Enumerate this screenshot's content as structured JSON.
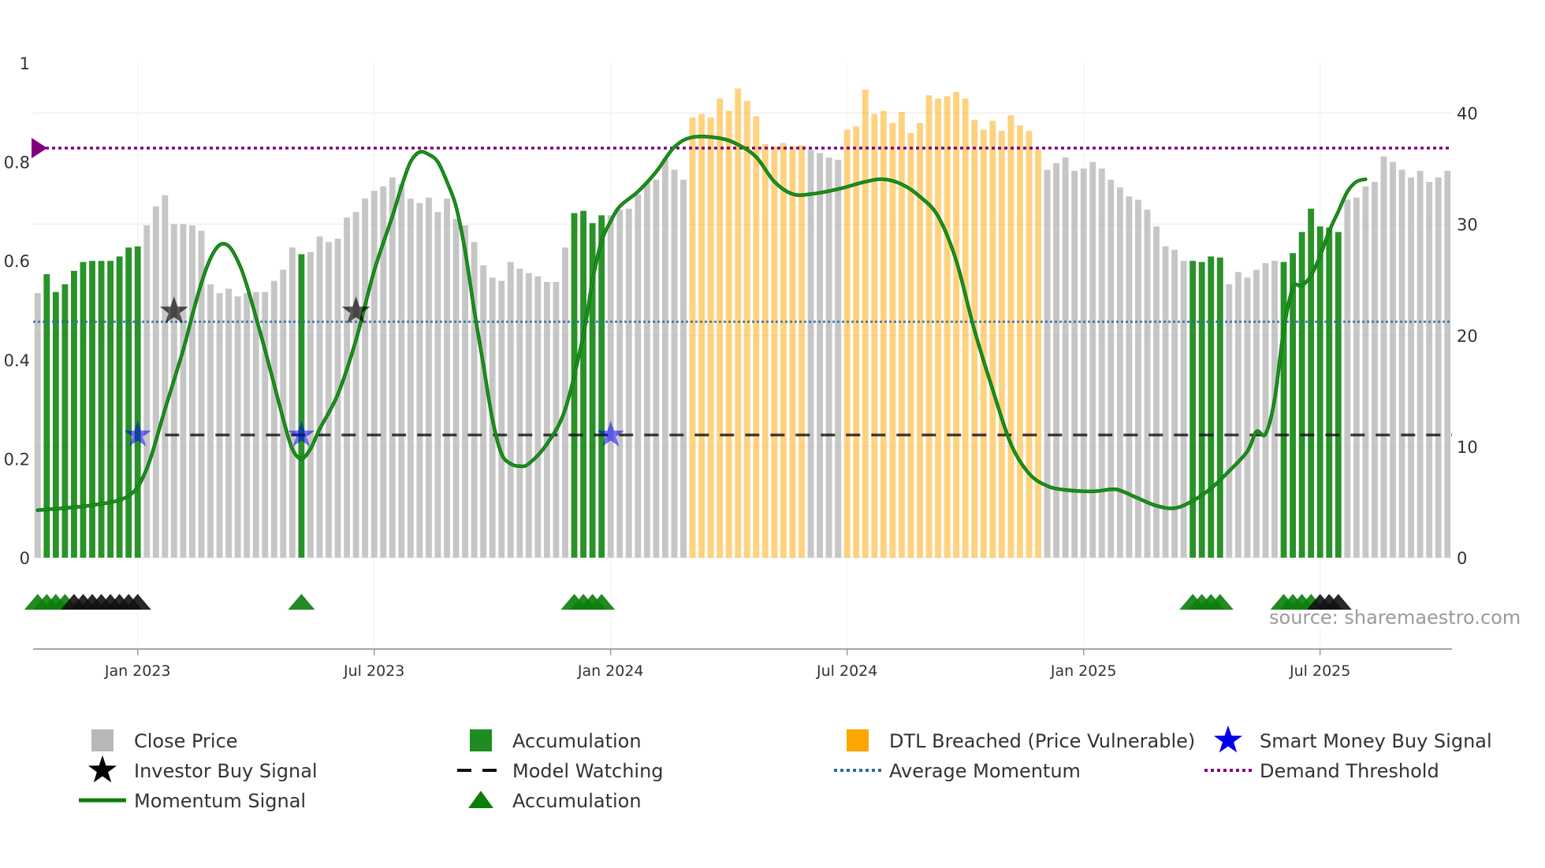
{
  "chart_data": {
    "type": "bar",
    "title": "",
    "source": "source: sharemaestro.com",
    "x_ticks": [
      "Jan 2023",
      "Jul 2023",
      "Jan 2024",
      "Jul 2024",
      "Jan 2025",
      "Jul 2025"
    ],
    "y_left": {
      "ticks": [
        "0",
        "0.2",
        "0.4",
        "0.6",
        "0.8",
        "1"
      ],
      "ylim": [
        0,
        1
      ]
    },
    "y_right": {
      "ticks": [
        "0",
        "10",
        "20",
        "30",
        "40"
      ],
      "ylim": [
        0,
        44.5
      ]
    },
    "bar_states": {
      "g": "Accumulation",
      "y": "DTL Breached (Price Vulnerable)",
      "x": "Close Price"
    },
    "close_price_weekly": [
      [
        23.8,
        "x"
      ],
      [
        25.5,
        "g"
      ],
      [
        23.9,
        "g"
      ],
      [
        24.6,
        "g"
      ],
      [
        25.8,
        "g"
      ],
      [
        26.6,
        "g"
      ],
      [
        26.7,
        "g"
      ],
      [
        26.7,
        "g"
      ],
      [
        26.7,
        "g"
      ],
      [
        27.1,
        "g"
      ],
      [
        27.9,
        "g"
      ],
      [
        28.0,
        "g"
      ],
      [
        29.9,
        "x"
      ],
      [
        31.6,
        "x"
      ],
      [
        32.6,
        "x"
      ],
      [
        30.0,
        "x"
      ],
      [
        30.0,
        "x"
      ],
      [
        29.9,
        "x"
      ],
      [
        29.4,
        "x"
      ],
      [
        24.6,
        "x"
      ],
      [
        23.8,
        "x"
      ],
      [
        24.2,
        "x"
      ],
      [
        23.5,
        "x"
      ],
      [
        23.8,
        "x"
      ],
      [
        23.9,
        "x"
      ],
      [
        23.9,
        "x"
      ],
      [
        24.9,
        "x"
      ],
      [
        25.9,
        "x"
      ],
      [
        27.9,
        "x"
      ],
      [
        27.3,
        "g"
      ],
      [
        27.5,
        "x"
      ],
      [
        28.9,
        "x"
      ],
      [
        28.4,
        "x"
      ],
      [
        28.7,
        "x"
      ],
      [
        30.6,
        "x"
      ],
      [
        31.1,
        "x"
      ],
      [
        32.3,
        "x"
      ],
      [
        33.0,
        "x"
      ],
      [
        33.4,
        "x"
      ],
      [
        34.2,
        "x"
      ],
      [
        33.6,
        "x"
      ],
      [
        32.3,
        "x"
      ],
      [
        31.9,
        "x"
      ],
      [
        32.4,
        "x"
      ],
      [
        31.1,
        "x"
      ],
      [
        32.3,
        "x"
      ],
      [
        30.5,
        "x"
      ],
      [
        29.9,
        "x"
      ],
      [
        28.4,
        "x"
      ],
      [
        26.3,
        "x"
      ],
      [
        25.2,
        "x"
      ],
      [
        24.9,
        "x"
      ],
      [
        26.6,
        "x"
      ],
      [
        26.0,
        "x"
      ],
      [
        25.6,
        "x"
      ],
      [
        25.3,
        "x"
      ],
      [
        24.8,
        "x"
      ],
      [
        24.8,
        "x"
      ],
      [
        27.9,
        "x"
      ],
      [
        31.0,
        "g"
      ],
      [
        31.2,
        "g"
      ],
      [
        30.1,
        "g"
      ],
      [
        30.8,
        "g"
      ],
      [
        30.8,
        "x"
      ],
      [
        31.3,
        "x"
      ],
      [
        31.4,
        "x"
      ],
      [
        32.7,
        "x"
      ],
      [
        33.8,
        "x"
      ],
      [
        34.0,
        "x"
      ],
      [
        35.9,
        "x"
      ],
      [
        34.9,
        "x"
      ],
      [
        34.0,
        "x"
      ],
      [
        39.6,
        "y"
      ],
      [
        39.9,
        "y"
      ],
      [
        39.6,
        "y"
      ],
      [
        41.3,
        "y"
      ],
      [
        40.2,
        "y"
      ],
      [
        42.2,
        "y"
      ],
      [
        41.1,
        "y"
      ],
      [
        39.7,
        "y"
      ],
      [
        37.2,
        "y"
      ],
      [
        37.0,
        "y"
      ],
      [
        37.3,
        "y"
      ],
      [
        37.0,
        "y"
      ],
      [
        37.1,
        "y"
      ],
      [
        36.7,
        "x"
      ],
      [
        36.4,
        "x"
      ],
      [
        36.0,
        "x"
      ],
      [
        35.8,
        "x"
      ],
      [
        38.5,
        "y"
      ],
      [
        38.8,
        "y"
      ],
      [
        42.1,
        "y"
      ],
      [
        39.9,
        "y"
      ],
      [
        40.2,
        "y"
      ],
      [
        39.1,
        "y"
      ],
      [
        40.1,
        "y"
      ],
      [
        38.2,
        "y"
      ],
      [
        39.1,
        "y"
      ],
      [
        41.6,
        "y"
      ],
      [
        41.3,
        "y"
      ],
      [
        41.5,
        "y"
      ],
      [
        41.9,
        "y"
      ],
      [
        41.3,
        "y"
      ],
      [
        39.4,
        "y"
      ],
      [
        38.5,
        "y"
      ],
      [
        39.3,
        "y"
      ],
      [
        38.4,
        "y"
      ],
      [
        39.8,
        "y"
      ],
      [
        38.9,
        "y"
      ],
      [
        38.4,
        "y"
      ],
      [
        36.7,
        "y"
      ],
      [
        34.9,
        "x"
      ],
      [
        35.5,
        "x"
      ],
      [
        36.0,
        "x"
      ],
      [
        34.8,
        "x"
      ],
      [
        35.0,
        "x"
      ],
      [
        35.6,
        "x"
      ],
      [
        35.0,
        "x"
      ],
      [
        34.0,
        "x"
      ],
      [
        33.3,
        "x"
      ],
      [
        32.5,
        "x"
      ],
      [
        32.2,
        "x"
      ],
      [
        31.3,
        "x"
      ],
      [
        29.8,
        "x"
      ],
      [
        28.0,
        "x"
      ],
      [
        27.7,
        "x"
      ],
      [
        26.7,
        "x"
      ],
      [
        26.7,
        "g"
      ],
      [
        26.6,
        "g"
      ],
      [
        27.1,
        "g"
      ],
      [
        27.0,
        "g"
      ],
      [
        24.6,
        "x"
      ],
      [
        25.7,
        "x"
      ],
      [
        25.2,
        "x"
      ],
      [
        25.9,
        "x"
      ],
      [
        26.5,
        "x"
      ],
      [
        26.7,
        "x"
      ],
      [
        26.6,
        "g"
      ],
      [
        27.4,
        "g"
      ],
      [
        29.3,
        "g"
      ],
      [
        31.4,
        "g"
      ],
      [
        29.8,
        "g"
      ],
      [
        29.7,
        "g"
      ],
      [
        29.3,
        "g"
      ],
      [
        32.2,
        "x"
      ],
      [
        32.4,
        "x"
      ],
      [
        33.4,
        "x"
      ],
      [
        33.8,
        "x"
      ],
      [
        36.1,
        "x"
      ],
      [
        35.6,
        "x"
      ],
      [
        34.9,
        "x"
      ],
      [
        34.2,
        "x"
      ],
      [
        34.8,
        "x"
      ],
      [
        33.8,
        "x"
      ],
      [
        34.2,
        "x"
      ],
      [
        34.8,
        "x"
      ]
    ],
    "momentum_signal": [
      [
        0,
        0.096
      ],
      [
        6,
        0.106
      ],
      [
        10,
        0.125
      ],
      [
        12,
        0.18
      ],
      [
        14,
        0.3
      ],
      [
        16,
        0.42
      ],
      [
        17,
        0.49
      ],
      [
        18,
        0.555
      ],
      [
        19,
        0.605
      ],
      [
        20,
        0.632
      ],
      [
        21,
        0.63
      ],
      [
        22,
        0.6
      ],
      [
        23,
        0.55
      ],
      [
        25,
        0.42
      ],
      [
        27,
        0.28
      ],
      [
        28,
        0.22
      ],
      [
        29,
        0.2
      ],
      [
        30,
        0.22
      ],
      [
        31,
        0.26
      ],
      [
        33,
        0.33
      ],
      [
        35,
        0.44
      ],
      [
        37,
        0.58
      ],
      [
        39,
        0.69
      ],
      [
        40,
        0.75
      ],
      [
        41,
        0.8
      ],
      [
        42,
        0.82
      ],
      [
        43,
        0.815
      ],
      [
        44,
        0.8
      ],
      [
        45,
        0.76
      ],
      [
        46,
        0.71
      ],
      [
        47,
        0.62
      ],
      [
        48,
        0.5
      ],
      [
        49,
        0.39
      ],
      [
        50,
        0.28
      ],
      [
        51,
        0.21
      ],
      [
        52,
        0.19
      ],
      [
        53,
        0.185
      ],
      [
        54,
        0.19
      ],
      [
        56,
        0.23
      ],
      [
        58,
        0.3
      ],
      [
        60,
        0.45
      ],
      [
        61,
        0.56
      ],
      [
        62,
        0.64
      ],
      [
        63,
        0.68
      ],
      [
        64,
        0.71
      ],
      [
        66,
        0.74
      ],
      [
        68,
        0.78
      ],
      [
        70,
        0.83
      ],
      [
        72,
        0.85
      ],
      [
        75,
        0.848
      ],
      [
        77,
        0.835
      ],
      [
        79,
        0.81
      ],
      [
        81,
        0.76
      ],
      [
        83,
        0.735
      ],
      [
        85,
        0.735
      ],
      [
        88,
        0.745
      ],
      [
        91,
        0.76
      ],
      [
        93,
        0.765
      ],
      [
        95,
        0.755
      ],
      [
        97,
        0.73
      ],
      [
        99,
        0.69
      ],
      [
        101,
        0.6
      ],
      [
        103,
        0.46
      ],
      [
        105,
        0.34
      ],
      [
        107,
        0.23
      ],
      [
        109,
        0.17
      ],
      [
        111,
        0.145
      ],
      [
        113,
        0.137
      ],
      [
        116,
        0.134
      ],
      [
        118,
        0.138
      ],
      [
        119,
        0.136
      ],
      [
        121,
        0.12
      ],
      [
        123,
        0.105
      ],
      [
        125,
        0.1
      ],
      [
        127,
        0.115
      ],
      [
        129,
        0.14
      ],
      [
        131,
        0.175
      ],
      [
        133,
        0.215
      ],
      [
        134,
        0.255
      ],
      [
        135,
        0.25
      ],
      [
        136,
        0.32
      ],
      [
        137,
        0.46
      ],
      [
        138,
        0.545
      ],
      [
        139,
        0.55
      ],
      [
        140,
        0.57
      ],
      [
        141,
        0.61
      ],
      [
        142,
        0.66
      ],
      [
        143,
        0.7
      ],
      [
        144,
        0.74
      ],
      [
        145,
        0.76
      ],
      [
        146,
        0.765
      ]
    ],
    "demand_threshold": 0.828,
    "average_momentum": 0.477,
    "model_watching": {
      "level": 0.248,
      "start_week": 14
    },
    "investor_buy_signals": [
      {
        "week": 15,
        "value": 0.498
      },
      {
        "week": 35,
        "value": 0.498
      }
    ],
    "smart_money_buy_signals": [
      {
        "week": 11,
        "value": 0.248
      },
      {
        "week": 29,
        "value": 0.248
      },
      {
        "week": 63,
        "value": 0.248
      }
    ],
    "accumulation_markers": [
      {
        "week": 0,
        "color": "green"
      },
      {
        "week": 1,
        "color": "green"
      },
      {
        "week": 2,
        "color": "green"
      },
      {
        "week": 3,
        "color": "green"
      },
      {
        "week": 4,
        "color": "black"
      },
      {
        "week": 5,
        "color": "black"
      },
      {
        "week": 6,
        "color": "black"
      },
      {
        "week": 7,
        "color": "black"
      },
      {
        "week": 8,
        "color": "black"
      },
      {
        "week": 9,
        "color": "black"
      },
      {
        "week": 10,
        "color": "black"
      },
      {
        "week": 11,
        "color": "black"
      },
      {
        "week": 29,
        "color": "green"
      },
      {
        "week": 59,
        "color": "green"
      },
      {
        "week": 60,
        "color": "green"
      },
      {
        "week": 61,
        "color": "green"
      },
      {
        "week": 62,
        "color": "green"
      },
      {
        "week": 127,
        "color": "green"
      },
      {
        "week": 128,
        "color": "green"
      },
      {
        "week": 129,
        "color": "green"
      },
      {
        "week": 130,
        "color": "green"
      },
      {
        "week": 137,
        "color": "green"
      },
      {
        "week": 138,
        "color": "green"
      },
      {
        "week": 139,
        "color": "green"
      },
      {
        "week": 140,
        "color": "green"
      },
      {
        "week": 141,
        "color": "black"
      },
      {
        "week": 142,
        "color": "black"
      },
      {
        "week": 143,
        "color": "black"
      }
    ],
    "colors": {
      "close_price": "#b8b8b8",
      "accumulation": "#1e8c1e",
      "dtl_breached": "#ffa500",
      "momentum": "#0a7d0a",
      "smart_money": "#0000ee",
      "investor": "#000000",
      "model_watching": "#111111",
      "average_momentum": "#2e6b9e",
      "demand_threshold": "#800080"
    },
    "legend": [
      {
        "key": "close_price",
        "label": "Close Price",
        "marker": "square",
        "color": "#b8b8b8"
      },
      {
        "key": "accumulation_bar",
        "label": "Accumulation",
        "marker": "square",
        "color": "#1e8c1e"
      },
      {
        "key": "dtl",
        "label": "DTL Breached (Price Vulnerable)",
        "marker": "square",
        "color": "#ffa500"
      },
      {
        "key": "smart_money",
        "label": "Smart Money Buy Signal",
        "marker": "star",
        "color": "#0000ee"
      },
      {
        "key": "investor",
        "label": "Investor Buy Signal",
        "marker": "star",
        "color": "#000000"
      },
      {
        "key": "model_watching",
        "label": "Model Watching",
        "marker": "dash",
        "color": "#111111"
      },
      {
        "key": "average_momentum",
        "label": "Average Momentum",
        "marker": "dot",
        "color": "#2e6b9e"
      },
      {
        "key": "demand_threshold",
        "label": "Demand Threshold",
        "marker": "dot",
        "color": "#800080"
      },
      {
        "key": "momentum",
        "label": "Momentum Signal",
        "marker": "line",
        "color": "#0a7d0a"
      },
      {
        "key": "accumulation_marker",
        "label": "Accumulation",
        "marker": "triangle",
        "color": "#0a7d0a"
      }
    ]
  }
}
